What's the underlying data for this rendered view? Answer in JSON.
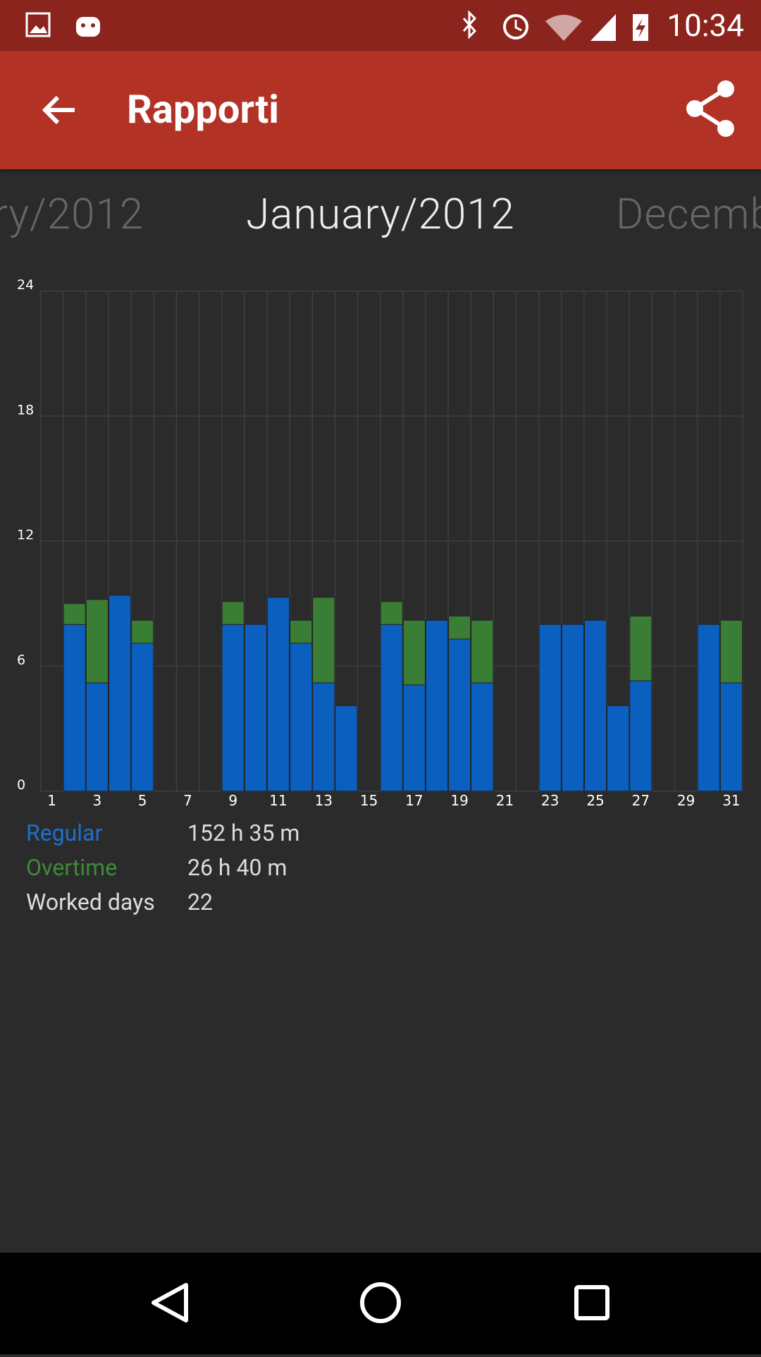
{
  "status_bar": {
    "time": "10:34"
  },
  "app_bar": {
    "title": "Rapporti"
  },
  "pager": {
    "previous": "ry/2012",
    "current": "January/2012",
    "next": "Decemb"
  },
  "chart_data": {
    "type": "bar",
    "stacked": true,
    "categories": [
      1,
      null,
      3,
      null,
      5,
      null,
      7,
      null,
      9,
      null,
      11,
      null,
      13,
      null,
      15,
      null,
      17,
      null,
      19,
      null,
      21,
      null,
      23,
      null,
      25,
      null,
      27,
      null,
      29,
      null,
      31
    ],
    "series": [
      {
        "name": "Regular",
        "color": "#0a5fbf",
        "values": [
          null,
          8,
          5.2,
          9.4,
          7.1,
          null,
          null,
          null,
          8,
          8,
          9.3,
          7.1,
          5.2,
          4.1,
          null,
          8,
          5.1,
          8.2,
          7.3,
          5.2,
          null,
          null,
          8,
          8,
          8.2,
          4.1,
          5.3,
          null,
          null,
          8,
          5.2
        ]
      },
      {
        "name": "Overtime",
        "color": "#3a7d35",
        "values": [
          null,
          1,
          4,
          0,
          1.1,
          null,
          null,
          null,
          1.1,
          0,
          0,
          1.1,
          4.1,
          0,
          null,
          1.1,
          3.1,
          0,
          1.1,
          3,
          null,
          null,
          0,
          0,
          0,
          0,
          3.1,
          null,
          null,
          0,
          3
        ]
      }
    ],
    "ylim": [
      0,
      24
    ],
    "yticks": [
      0,
      6,
      12,
      18,
      24
    ],
    "grid": true
  },
  "summary": {
    "regular": "152 h 35 m",
    "overtime": "26 h 40 m",
    "worked_days_label": "Worked days",
    "worked_days": "22"
  }
}
